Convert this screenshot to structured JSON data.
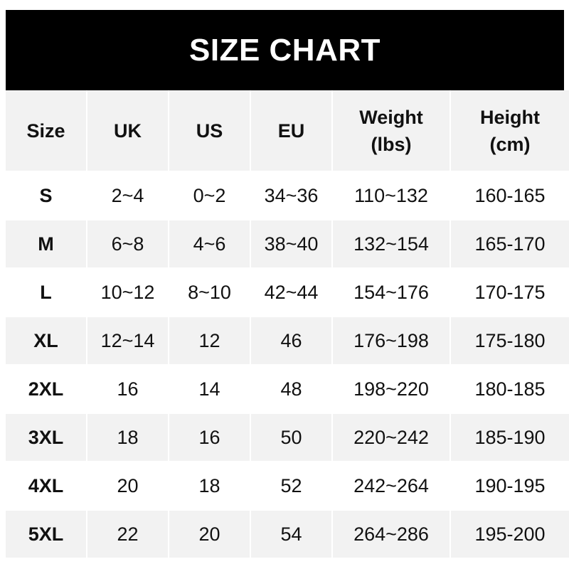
{
  "title": "SIZE CHART",
  "headers": [
    "Size",
    "UK",
    "US",
    "EU",
    "Weight\n(lbs)",
    "Height\n(cm)"
  ],
  "header_lines": [
    [
      "Size"
    ],
    [
      "UK"
    ],
    [
      "US"
    ],
    [
      "EU"
    ],
    [
      "Weight",
      "(lbs)"
    ],
    [
      "Height",
      "(cm)"
    ]
  ],
  "rows": [
    [
      "S",
      "2~4",
      "0~2",
      "34~36",
      "110~132",
      "160-165"
    ],
    [
      "M",
      "6~8",
      "4~6",
      "38~40",
      "132~154",
      "165-170"
    ],
    [
      "L",
      "10~12",
      "8~10",
      "42~44",
      "154~176",
      "170-175"
    ],
    [
      "XL",
      "12~14",
      "12",
      "46",
      "176~198",
      "175-180"
    ],
    [
      "2XL",
      "16",
      "14",
      "48",
      "198~220",
      "180-185"
    ],
    [
      "3XL",
      "18",
      "16",
      "50",
      "220~242",
      "185-190"
    ],
    [
      "4XL",
      "20",
      "18",
      "52",
      "242~264",
      "190-195"
    ],
    [
      "5XL",
      "22",
      "20",
      "54",
      "264~286",
      "195-200"
    ]
  ],
  "colors": {
    "banner": "#000000",
    "row_gray": "#f2f2f2",
    "row_white": "#ffffff"
  }
}
